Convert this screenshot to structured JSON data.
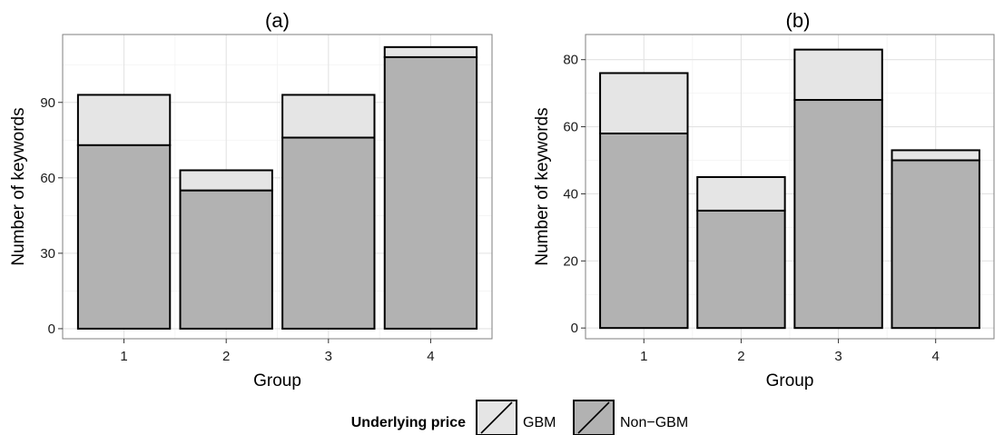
{
  "colors": {
    "GBM": "#e5e5e5",
    "Non-GBM": "#b2b2b2"
  },
  "legend": {
    "title": "Underlying price",
    "items": [
      {
        "label": "GBM",
        "color_key": "GBM"
      },
      {
        "label": "Non−GBM",
        "color_key": "Non-GBM"
      }
    ]
  },
  "chart_data": [
    {
      "type": "bar",
      "stacked": true,
      "title": "(a)",
      "xlabel": "Group",
      "ylabel": "Number of keywords",
      "categories": [
        "1",
        "2",
        "3",
        "4"
      ],
      "series": [
        {
          "name": "Non−GBM",
          "values": [
            73,
            55,
            76,
            108
          ]
        },
        {
          "name": "GBM",
          "values": [
            20,
            8,
            17,
            4
          ]
        }
      ],
      "ylim": [
        -4,
        117
      ],
      "yticks": [
        0,
        30,
        60,
        90
      ],
      "grid": true,
      "legend_position": "bottom"
    },
    {
      "type": "bar",
      "stacked": true,
      "title": "(b)",
      "xlabel": "Group",
      "ylabel": "Number of keywords",
      "categories": [
        "1",
        "2",
        "3",
        "4"
      ],
      "series": [
        {
          "name": "Non−GBM",
          "values": [
            58,
            35,
            68,
            50
          ]
        },
        {
          "name": "GBM",
          "values": [
            18,
            10,
            15,
            3
          ]
        }
      ],
      "ylim": [
        -3.2,
        87.5
      ],
      "yticks": [
        0,
        20,
        40,
        60,
        80
      ],
      "grid": true,
      "legend_position": "bottom"
    }
  ]
}
